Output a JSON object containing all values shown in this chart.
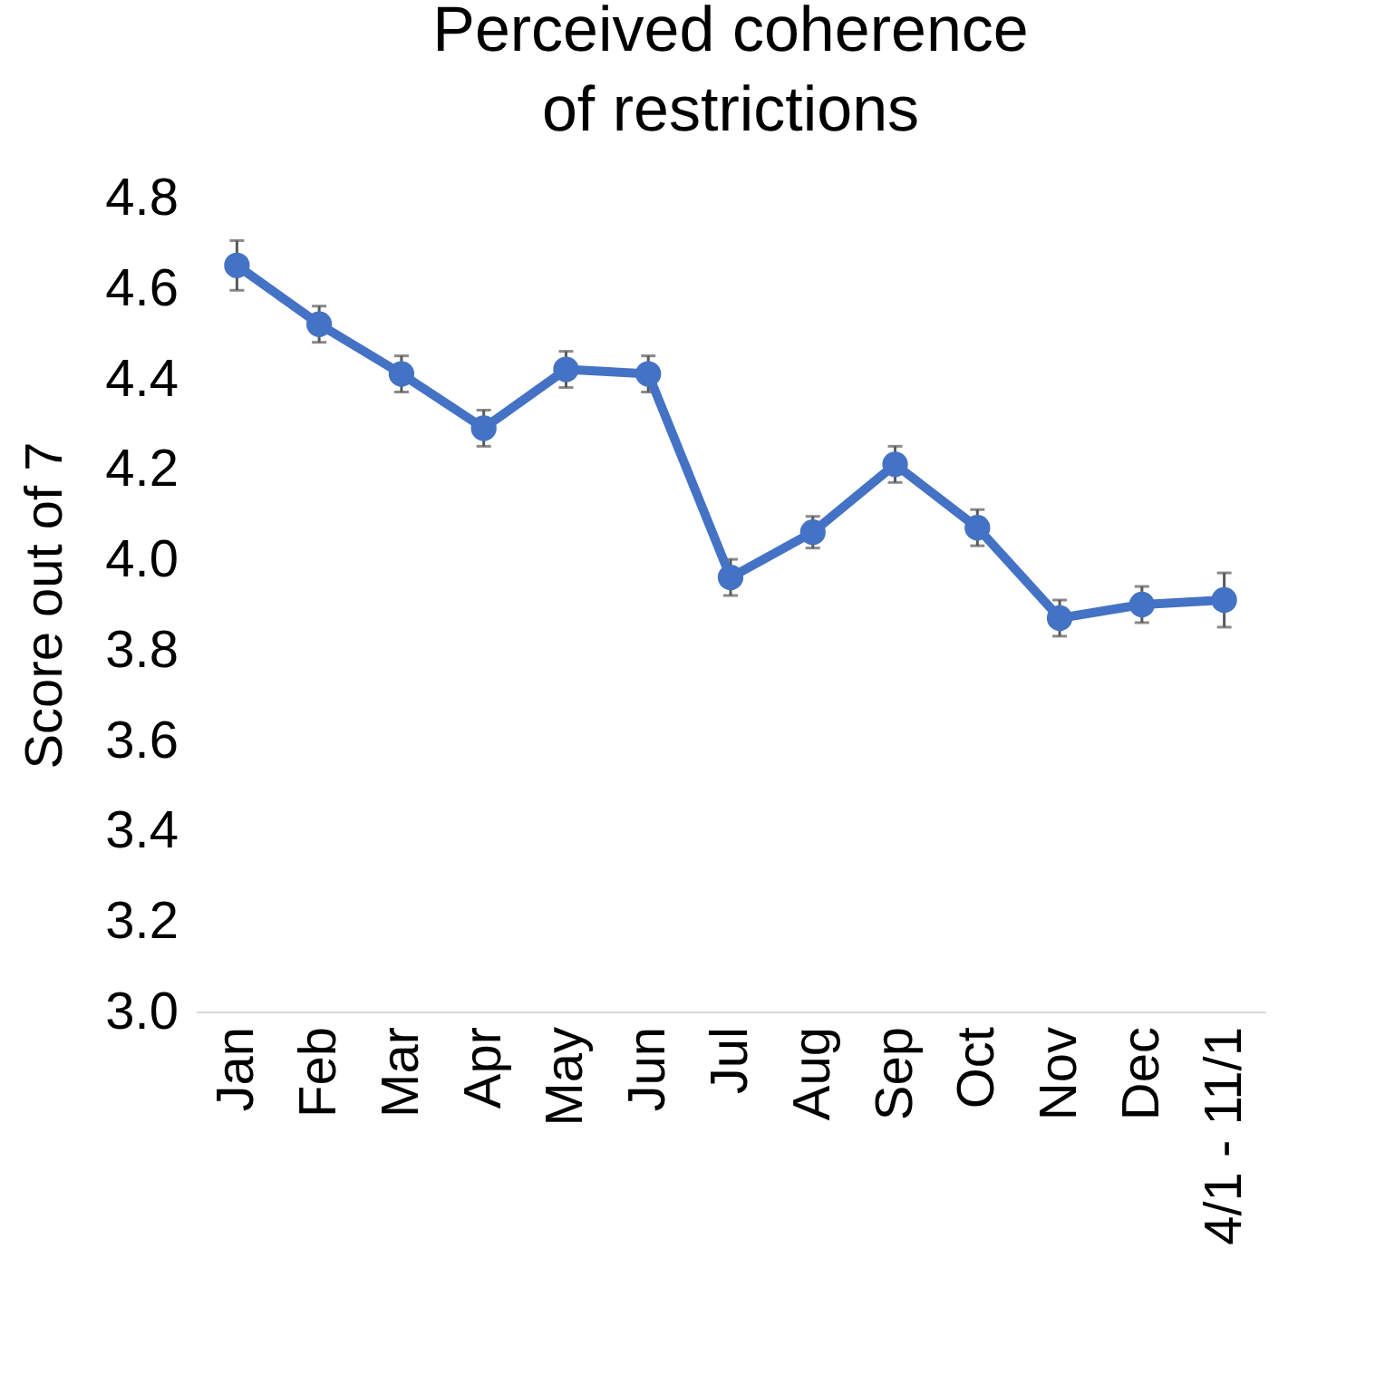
{
  "chart_data": {
    "type": "line",
    "title": "Perceived coherence of restrictions",
    "ylabel": "Score out of 7",
    "categories": [
      "Jan",
      "Feb",
      "Mar",
      "Apr",
      "May",
      "Jun",
      "Jul",
      "Aug",
      "Sep",
      "Oct",
      "Nov",
      "Dec",
      "4/1 - 11/1"
    ],
    "series": [
      {
        "color": "#4472c4",
        "values": [
          4.65,
          4.52,
          4.41,
          4.29,
          4.42,
          4.41,
          3.96,
          4.06,
          4.21,
          4.07,
          3.87,
          3.9,
          3.91
        ],
        "errors": [
          0.055,
          0.04,
          0.04,
          0.04,
          0.04,
          0.04,
          0.04,
          0.035,
          0.04,
          0.04,
          0.04,
          0.04,
          0.06
        ]
      }
    ],
    "ylim": [
      3.0,
      4.8
    ],
    "yticks": [
      {
        "value": 3.0,
        "label": "3.0"
      },
      {
        "value": 3.2,
        "label": "3.2"
      },
      {
        "value": 3.4,
        "label": "3.4"
      },
      {
        "value": 3.6,
        "label": "3.6"
      },
      {
        "value": 3.8,
        "label": "3.8"
      },
      {
        "value": 4.0,
        "label": "4.0"
      },
      {
        "value": 4.2,
        "label": "4.2"
      },
      {
        "value": 4.4,
        "label": "4.4"
      },
      {
        "value": 4.6,
        "label": "4.6"
      },
      {
        "value": 4.8,
        "label": "4.8"
      }
    ],
    "grid": false,
    "marker": "circle",
    "line_style": "solid"
  }
}
